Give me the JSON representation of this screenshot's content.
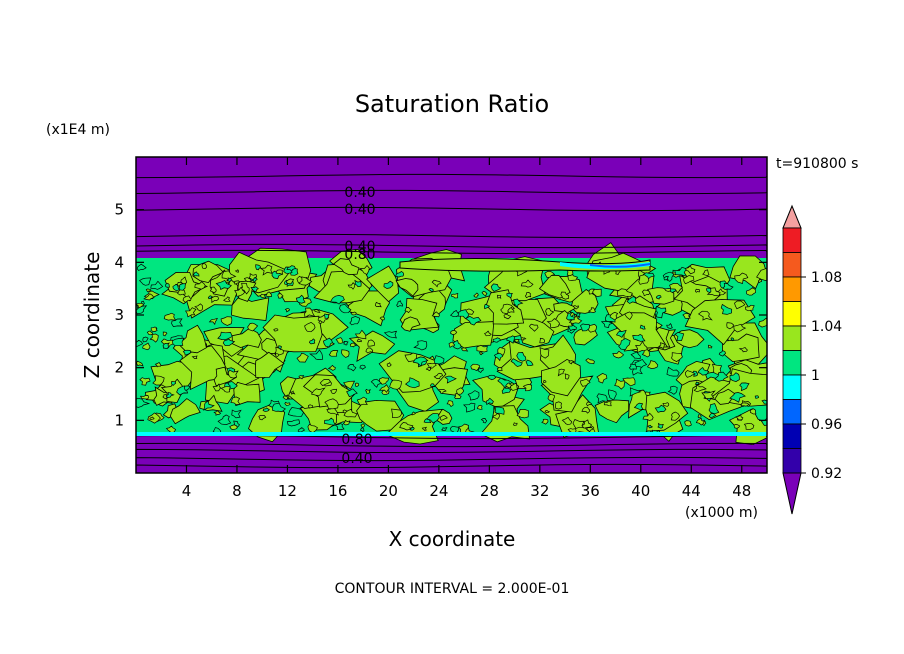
{
  "chart_data": {
    "type": "heatmap",
    "title": "Saturation Ratio",
    "xlabel": "X coordinate",
    "ylabel": "Z coordinate",
    "x_unit": "(x1000 m)",
    "y_unit": "(x1E4 m)",
    "time_label": "t=910800 s",
    "footer": "CONTOUR INTERVAL = 2.000E-01",
    "xlim": [
      0,
      50
    ],
    "ylim": [
      0,
      6
    ],
    "x_ticks": [
      "4",
      "8",
      "12",
      "16",
      "20",
      "24",
      "28",
      "32",
      "36",
      "40",
      "44",
      "48"
    ],
    "y_ticks": [
      "1",
      "2",
      "3",
      "4",
      "5"
    ],
    "colorbar": {
      "labels": [
        "1.08",
        "1.04",
        "1",
        "0.96",
        "0.92"
      ],
      "colors": [
        "#f4a0a0",
        "#ee1c24",
        "#f55a1e",
        "#ff9900",
        "#ffff00",
        "#99e61e",
        "#00e680",
        "#00ffff",
        "#0066ff",
        "#0000b3",
        "#3300aa",
        "#7a00b8"
      ]
    },
    "contour_labels": [
      "0.40",
      "0.40",
      "0.40",
      "0.80",
      "0.80",
      "0.40"
    ],
    "regions": {
      "upper_dry_color": "#7a00b8",
      "cloud_layer_color": "#00e680",
      "supersaturated_color": "#99e61e",
      "lower_dry_color": "#7a00b8",
      "cloud_top_z": 4.0,
      "cloud_base_z": 0.7
    }
  }
}
